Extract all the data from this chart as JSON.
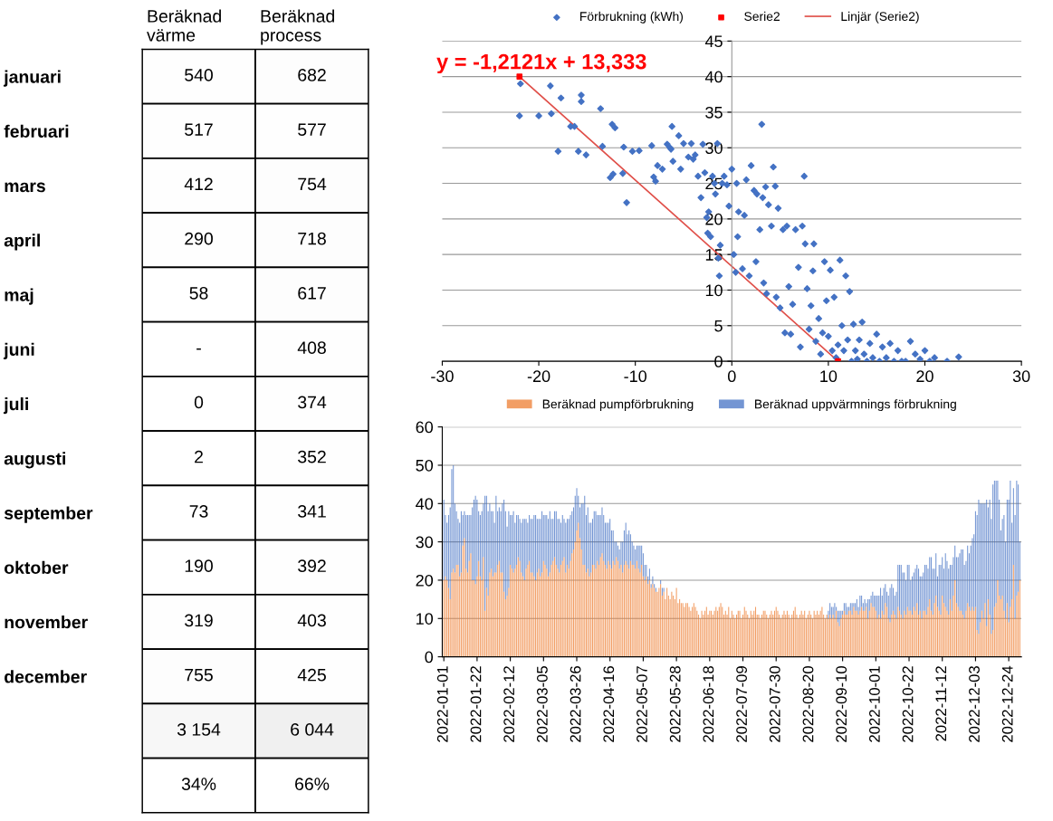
{
  "chart_data": [
    {
      "type": "heatmap",
      "categories": [
        "Beräknad värme",
        "Beräknad process"
      ],
      "y_categories": [
        "januari",
        "februari",
        "mars",
        "april",
        "maj",
        "juni",
        "juli",
        "augusti",
        "september",
        "oktober",
        "november",
        "december",
        null,
        null
      ],
      "cells": [
        [
          540,
          682
        ],
        [
          517,
          577
        ],
        [
          412,
          754
        ],
        [
          290,
          718
        ],
        [
          58,
          617
        ],
        [
          null,
          408
        ],
        [
          0,
          374
        ],
        [
          2,
          352
        ],
        [
          73,
          341
        ],
        [
          190,
          392
        ],
        [
          319,
          403
        ],
        [
          755,
          425
        ],
        [
          3154,
          6044
        ],
        [
          34,
          66
        ]
      ],
      "cell_labels": [
        [
          "540",
          "682"
        ],
        [
          "517",
          "577"
        ],
        [
          "412",
          "754"
        ],
        [
          "290",
          "718"
        ],
        [
          "58",
          "617"
        ],
        [
          "-",
          "408"
        ],
        [
          "0",
          "374"
        ],
        [
          "2",
          "352"
        ],
        [
          "73",
          "341"
        ],
        [
          "190",
          "392"
        ],
        [
          "319",
          "403"
        ],
        [
          "755",
          "425"
        ],
        [
          "3 154",
          "6 044"
        ],
        [
          "34%",
          "66%"
        ]
      ]
    },
    {
      "type": "scatter",
      "xlim": [
        -30,
        30
      ],
      "ylim": [
        0,
        45
      ],
      "xticks": [
        -30,
        -20,
        -10,
        0,
        10,
        20,
        30
      ],
      "yticks": [
        0,
        5,
        10,
        15,
        20,
        25,
        30,
        35,
        40,
        45
      ],
      "grid": "y",
      "legend": "top",
      "annotations": [
        "y = -1,2121x + 13,333"
      ],
      "series": [
        {
          "name": "Förbrukning (kWh)",
          "type": "scatter",
          "marker": "diamond",
          "color": "#4472c4",
          "x": [
            -22,
            -21.9,
            -20,
            -18.8,
            -18.7,
            -17.7,
            -18,
            -16.7,
            -16.3,
            -15.9,
            -15.6,
            -15.6,
            -15.1,
            -13.6,
            -13.4,
            -12.4,
            -12.1,
            -12.6,
            -12.3,
            -11.2,
            -11.3,
            -10.9,
            -10.3,
            -9.6,
            -8.3,
            -8.1,
            -7.9,
            -7.7,
            -7.2,
            -6.7,
            -6.4,
            -6.3,
            -6.2,
            -6.1,
            -5.5,
            -5.3,
            -5,
            -4.5,
            -4.2,
            -4,
            -3.8,
            -3.5,
            -3.2,
            -3,
            -2.8,
            -2.6,
            -2.5,
            -2.4,
            -2.2,
            -2,
            -1.8,
            -1.7,
            -1.5,
            -1.4,
            -1.3,
            -1.2,
            -1,
            -0.8,
            -0.5,
            -0.3,
            0,
            0.2,
            0.4,
            0.5,
            0.6,
            0.7,
            1.1,
            1.3,
            1.5,
            1.8,
            2,
            2.3,
            2.5,
            2.6,
            2.9,
            3.1,
            3.2,
            3.3,
            3.5,
            3.6,
            3.8,
            4.1,
            4.3,
            4.5,
            4.6,
            4.8,
            5,
            5.3,
            5.5,
            5.7,
            5.9,
            6.1,
            6.3,
            6.6,
            6.9,
            7.1,
            7.3,
            7.5,
            7.6,
            7.8,
            8,
            8.2,
            8.4,
            8.5,
            8.7,
            9,
            9.2,
            9.4,
            9.6,
            9.8,
            10,
            10.2,
            10.4,
            10.6,
            10.8,
            11,
            11.2,
            11.4,
            11.6,
            11.8,
            12,
            12.2,
            12.4,
            12.6,
            12.8,
            13,
            13.2,
            13.5,
            13.7,
            14,
            14.3,
            14.6,
            15,
            15.3,
            15.6,
            16,
            16.4,
            16.8,
            17.2,
            17.6,
            18,
            18.5,
            19,
            19.5,
            20,
            20.5,
            21,
            22.3,
            23.5
          ],
          "values": [
            34.5,
            39,
            34.5,
            38.7,
            34.8,
            37,
            29.5,
            33,
            33,
            29.5,
            37.4,
            36.5,
            29,
            35.5,
            30.2,
            33.3,
            32.8,
            25.8,
            26.3,
            30.1,
            26.4,
            22.3,
            29.5,
            29.6,
            30.3,
            25.9,
            25.3,
            27.5,
            27,
            30.5,
            30,
            29.8,
            33,
            28.1,
            31.7,
            27,
            30.6,
            28.7,
            30.6,
            28.4,
            29,
            26,
            23,
            30.5,
            26.5,
            20.2,
            18,
            21,
            17.5,
            26,
            25,
            23.5,
            30.6,
            14.5,
            12,
            16.3,
            25,
            26,
            24.8,
            21.8,
            27,
            15,
            12.5,
            25,
            17.5,
            21,
            13,
            20.5,
            25.5,
            12,
            27.5,
            24,
            14,
            23.5,
            18.5,
            33.3,
            23,
            11,
            24.5,
            9.5,
            22,
            19,
            27.3,
            24.6,
            9,
            21.5,
            7.5,
            18.5,
            4,
            19,
            10.5,
            3.8,
            8,
            18.5,
            13.2,
            2,
            19,
            26,
            16.5,
            10.2,
            4.5,
            7.8,
            12.7,
            16.5,
            2.8,
            6,
            1,
            4,
            14,
            8.5,
            3.5,
            12.8,
            1.5,
            9,
            0.5,
            2.3,
            14.2,
            5,
            1.5,
            12,
            3,
            9.8,
            0,
            5.2,
            1.5,
            0.3,
            3,
            5.5,
            1,
            0,
            2.5,
            0.5,
            3.8,
            0,
            2,
            0.5,
            2.5,
            0,
            1.5,
            0,
            0,
            2.8,
            1,
            0.3,
            1.5,
            0,
            0.5,
            0,
            0.6
          ]
        },
        {
          "name": "Serie2",
          "type": "scatter",
          "marker": "square",
          "color": "#ff0000",
          "x": [
            -22,
            11
          ],
          "values": [
            40,
            0
          ]
        },
        {
          "name": "Linjär (Serie2)",
          "type": "line",
          "marker": "none",
          "color": "#e0504a",
          "x": [
            -22,
            11
          ],
          "values": [
            40,
            0
          ]
        }
      ]
    },
    {
      "type": "bar",
      "stacked": true,
      "ylim": [
        0,
        60
      ],
      "yticks": [
        0,
        10,
        20,
        30,
        40,
        50,
        60
      ],
      "grid": "y",
      "legend": "top",
      "categories": [
        "2022-01-01",
        null,
        null,
        null,
        null,
        null,
        null,
        null,
        null,
        null,
        null,
        null,
        null,
        null,
        null,
        null,
        null,
        null,
        null,
        null,
        null,
        "2022-01-22",
        null,
        null,
        null,
        null,
        null,
        null,
        null,
        null,
        null,
        null,
        null,
        null,
        null,
        null,
        null,
        null,
        null,
        null,
        null,
        null,
        "2022-02-12",
        null,
        null,
        null,
        null,
        null,
        null,
        null,
        null,
        null,
        null,
        null,
        null,
        null,
        null,
        null,
        null,
        null,
        null,
        null,
        null,
        "2022-03-05",
        null,
        null,
        null,
        null,
        null,
        null,
        null,
        null,
        null,
        null,
        null,
        null,
        null,
        null,
        null,
        null,
        null,
        null,
        null,
        null,
        "2022-03-26",
        null,
        null,
        null,
        null,
        null,
        null,
        null,
        null,
        null,
        null,
        null,
        null,
        null,
        null,
        null,
        null,
        null,
        null,
        null,
        null,
        "2022-04-16",
        null,
        null,
        null,
        null,
        null,
        null,
        null,
        null,
        null,
        null,
        null,
        null,
        null,
        null,
        null,
        null,
        null,
        null,
        null,
        null,
        "2022-05-07",
        null,
        null,
        null,
        null,
        null,
        null,
        null,
        null,
        null,
        null,
        null,
        null,
        null,
        null,
        null,
        null,
        null,
        null,
        null,
        null,
        "2022-05-28",
        null,
        null,
        null,
        null,
        null,
        null,
        null,
        null,
        null,
        null,
        null,
        null,
        null,
        null,
        null,
        null,
        null,
        null,
        null,
        null,
        "2022-06-18",
        null,
        null,
        null,
        null,
        null,
        null,
        null,
        null,
        null,
        null,
        null,
        null,
        null,
        null,
        null,
        null,
        null,
        null,
        null,
        null,
        "2022-07-09",
        null,
        null,
        null,
        null,
        null,
        null,
        null,
        null,
        null,
        null,
        null,
        null,
        null,
        null,
        null,
        null,
        null,
        null,
        null,
        null,
        "2022-07-30",
        null,
        null,
        null,
        null,
        null,
        null,
        null,
        null,
        null,
        null,
        null,
        null,
        null,
        null,
        null,
        null,
        null,
        null,
        null,
        null,
        "2022-08-20",
        null,
        null,
        null,
        null,
        null,
        null,
        null,
        null,
        null,
        null,
        null,
        null,
        null,
        null,
        null,
        null,
        null,
        null,
        null,
        null,
        "2022-09-10",
        null,
        null,
        null,
        null,
        null,
        null,
        null,
        null,
        null,
        null,
        null,
        null,
        null,
        null,
        null,
        null,
        null,
        null,
        null,
        null,
        "2022-10-01",
        null,
        null,
        null,
        null,
        null,
        null,
        null,
        null,
        null,
        null,
        null,
        null,
        null,
        null,
        null,
        null,
        null,
        null,
        null,
        null,
        "2022-10-22",
        null,
        null,
        null,
        null,
        null,
        null,
        null,
        null,
        null,
        null,
        null,
        null,
        null,
        null,
        null,
        null,
        null,
        null,
        null,
        null,
        "2022-11-12",
        null,
        null,
        null,
        null,
        null,
        null,
        null,
        null,
        null,
        null,
        null,
        null,
        null,
        null,
        null,
        null,
        null,
        null,
        null,
        null,
        "2022-12-03",
        null,
        null,
        null,
        null,
        null,
        null,
        null,
        null,
        null,
        null,
        null,
        null,
        null,
        null,
        null,
        null,
        null,
        null,
        null,
        null,
        "2022-12-24",
        null,
        null,
        null,
        null,
        null,
        null,
        null
      ],
      "series": [
        {
          "name": "Beräknad pumpförbrukning",
          "color": "#ed7d31",
          "values": [
            20,
            21,
            20,
            18,
            15,
            22,
            23,
            22,
            24,
            24,
            21,
            22,
            29,
            31,
            23,
            22,
            25,
            27,
            20,
            20,
            19,
            21,
            25,
            21,
            20,
            26,
            12,
            18,
            16,
            22,
            23,
            21,
            22,
            22,
            24,
            25,
            22,
            22,
            17,
            15,
            16,
            18,
            24,
            23,
            22,
            23,
            24,
            26,
            25,
            22,
            21,
            20,
            23,
            24,
            25,
            22,
            22,
            21,
            20,
            22,
            23,
            21,
            22,
            25,
            24,
            23,
            21,
            22,
            24,
            25,
            26,
            24,
            23,
            22,
            24,
            25,
            26,
            22,
            24,
            23,
            25,
            27,
            28,
            30,
            33,
            35,
            31,
            28,
            24,
            24,
            22,
            23,
            21,
            22,
            24,
            24,
            23,
            25,
            24,
            26,
            27,
            25,
            24,
            23,
            25,
            24,
            23,
            25,
            24,
            26,
            25,
            23,
            24,
            22,
            24,
            25,
            24,
            23,
            25,
            24,
            24,
            23,
            25,
            23,
            22,
            24,
            21,
            20,
            21,
            19,
            20,
            18,
            19,
            18,
            17,
            17,
            18,
            19,
            16,
            17,
            15,
            18,
            16,
            15,
            17,
            16,
            15,
            18,
            14,
            15,
            14,
            14,
            13,
            14,
            14,
            13,
            12,
            13,
            14,
            13,
            12,
            11,
            10,
            12,
            11,
            12,
            13,
            11,
            12,
            12,
            11,
            12,
            13,
            12,
            13,
            14,
            13,
            11,
            12,
            11,
            13,
            10,
            12,
            11,
            10,
            11,
            12,
            12,
            10,
            11,
            13,
            12,
            11,
            10,
            12,
            11,
            12,
            13,
            11,
            11,
            10,
            11,
            12,
            12,
            11,
            10,
            11,
            12,
            11,
            12,
            13,
            12,
            11,
            10,
            11,
            12,
            11,
            12,
            11,
            10,
            11,
            12,
            13,
            11,
            10,
            11,
            12,
            11,
            12,
            10,
            11,
            12,
            11,
            10,
            12,
            11,
            12,
            11,
            12,
            13,
            11,
            10,
            11,
            10,
            11,
            10,
            11,
            10,
            12,
            9,
            8,
            10,
            11,
            12,
            11,
            11,
            12,
            12,
            11,
            13,
            12,
            12,
            11,
            12,
            13,
            12,
            12,
            13,
            10,
            12,
            14,
            13,
            13,
            12,
            10,
            11,
            10,
            12,
            11,
            14,
            13,
            10,
            9,
            11,
            12,
            11,
            10,
            13,
            12,
            11,
            10,
            12,
            11,
            13,
            12,
            12,
            11,
            13,
            12,
            14,
            11,
            12,
            10,
            12,
            12,
            11,
            13,
            15,
            12,
            11,
            14,
            16,
            13,
            12,
            11,
            16,
            14,
            13,
            12,
            11,
            15,
            12,
            16,
            20,
            14,
            13,
            12,
            12,
            11,
            10,
            12,
            14,
            13,
            12,
            13,
            12,
            13,
            7,
            6,
            9,
            12,
            10,
            14,
            8,
            15,
            11,
            6,
            7,
            13,
            14,
            20,
            16,
            15,
            16,
            12,
            10,
            14,
            9,
            13,
            15,
            24,
            10,
            16,
            17,
            20
          ]
        },
        {
          "name": "Beräknad uppvärmnings förbrukning",
          "color": "#4472c4",
          "values": [
            21,
            16,
            15,
            19,
            24,
            27,
            27,
            18,
            14,
            12,
            14,
            16,
            8,
            7,
            14,
            15,
            12,
            10,
            19,
            21,
            23,
            20,
            13,
            16,
            18,
            14,
            30,
            24,
            22,
            18,
            15,
            17,
            13,
            20,
            14,
            14,
            16,
            18,
            24,
            23,
            18,
            20,
            13,
            14,
            16,
            12,
            13,
            11,
            11,
            13,
            15,
            16,
            13,
            11,
            12,
            14,
            14,
            16,
            17,
            14,
            13,
            15,
            16,
            12,
            13,
            14,
            15,
            16,
            12,
            11,
            12,
            14,
            13,
            14,
            11,
            12,
            10,
            13,
            12,
            13,
            12,
            11,
            11,
            12,
            11,
            7,
            8,
            12,
            16,
            18,
            15,
            16,
            14,
            13,
            12,
            14,
            15,
            12,
            13,
            11,
            12,
            12,
            11,
            12,
            10,
            12,
            10,
            8,
            6,
            4,
            4,
            5,
            6,
            8,
            9,
            10,
            8,
            10,
            7,
            6,
            5,
            5,
            4,
            6,
            7,
            5,
            6,
            4,
            3,
            2,
            3,
            1,
            2,
            1,
            1,
            0,
            0,
            1,
            2,
            1,
            0,
            0,
            0,
            0,
            0,
            0,
            0,
            0,
            0,
            0,
            0,
            0,
            0,
            0,
            0,
            0,
            0,
            0,
            0,
            0,
            0,
            0,
            0,
            0,
            0,
            0,
            0,
            0,
            0,
            0,
            0,
            0,
            0,
            0,
            0,
            0,
            0,
            0,
            0,
            0,
            0,
            0,
            0,
            0,
            0,
            0,
            0,
            0,
            0,
            0,
            0,
            0,
            0,
            0,
            0,
            0,
            0,
            0,
            0,
            0,
            0,
            0,
            0,
            0,
            0,
            0,
            0,
            0,
            0,
            0,
            0,
            0,
            0,
            0,
            0,
            0,
            0,
            0,
            0,
            0,
            0,
            0,
            0,
            0,
            0,
            0,
            0,
            0,
            0,
            0,
            0,
            0,
            0,
            0,
            0,
            0,
            0,
            0,
            0,
            0,
            0,
            0,
            0,
            2,
            3,
            3,
            2,
            4,
            1,
            3,
            4,
            2,
            1,
            2,
            3,
            2,
            1,
            2,
            3,
            1,
            2,
            3,
            2,
            4,
            3,
            2,
            3,
            1,
            5,
            3,
            2,
            4,
            3,
            4,
            6,
            5,
            8,
            4,
            7,
            5,
            4,
            6,
            9,
            8,
            6,
            5,
            7,
            11,
            12,
            13,
            12,
            10,
            9,
            11,
            12,
            8,
            10,
            9,
            11,
            10,
            12,
            9,
            11,
            10,
            12,
            13,
            10,
            11,
            14,
            12,
            9,
            11,
            8,
            12,
            13,
            10,
            9,
            14,
            13,
            12,
            9,
            12,
            10,
            9,
            12,
            13,
            15,
            16,
            17,
            14,
            13,
            15,
            14,
            17,
            18,
            20,
            25,
            30,
            35,
            31,
            28,
            30,
            26,
            33,
            24,
            30,
            30,
            38,
            33,
            32,
            26,
            25,
            18,
            20,
            25,
            20,
            27,
            32,
            33,
            20,
            20,
            27,
            30,
            28,
            10
          ]
        }
      ]
    }
  ]
}
